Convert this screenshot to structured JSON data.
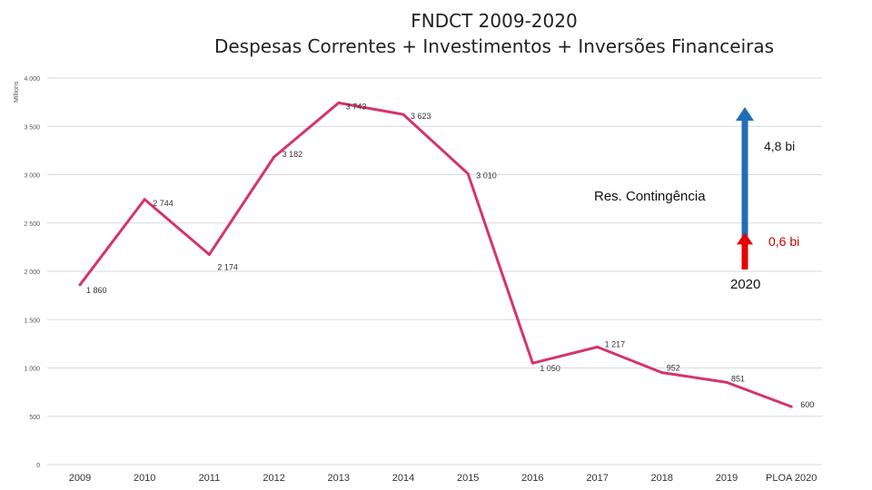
{
  "chart_data": {
    "type": "line",
    "title": "FNDCT 2009-2020",
    "subtitle": "Despesas Correntes + Investimentos + Inversões Financeiras",
    "ylabel": "Millions",
    "ylim": [
      0,
      4000
    ],
    "yticks": [
      0,
      500,
      1000,
      1500,
      2000,
      2500,
      3000,
      3500,
      4000
    ],
    "ytick_labels": [
      "0",
      "500",
      "1 000",
      "1 500",
      "2 000",
      "2 500",
      "3 000",
      "3 500",
      "4 000"
    ],
    "categories": [
      "2009",
      "2010",
      "2011",
      "2012",
      "2013",
      "2014",
      "2015",
      "2016",
      "2017",
      "2018",
      "2019",
      "PLOA 2020"
    ],
    "series": [
      {
        "values": [
          1860,
          2744,
          2174,
          3182,
          3743,
          3623,
          3010,
          1050,
          1217,
          952,
          851,
          600
        ],
        "labels": [
          "1 860",
          "2 744",
          "2 174",
          "3 182",
          "3 743",
          "3 623",
          "3 010",
          "1 050",
          "1 217",
          "952",
          "851",
          "600"
        ]
      }
    ],
    "grid": true,
    "colors": {
      "line": "#d6336c",
      "last_label": "#cc0000",
      "grid": "#d9d9d9",
      "arrow_blue": "#1f6fb4",
      "arrow_red": "#e60000"
    },
    "annotations": {
      "blue_arrow_label": "4,8 bi",
      "reserve_label": "Res. Contingência",
      "red_arrow_label": "0,6 bi",
      "year_label": "2020",
      "blue_arrow_top_value": 3700,
      "red_arrow_top_value": 2400,
      "arrow_bottom_value": 2000
    }
  }
}
